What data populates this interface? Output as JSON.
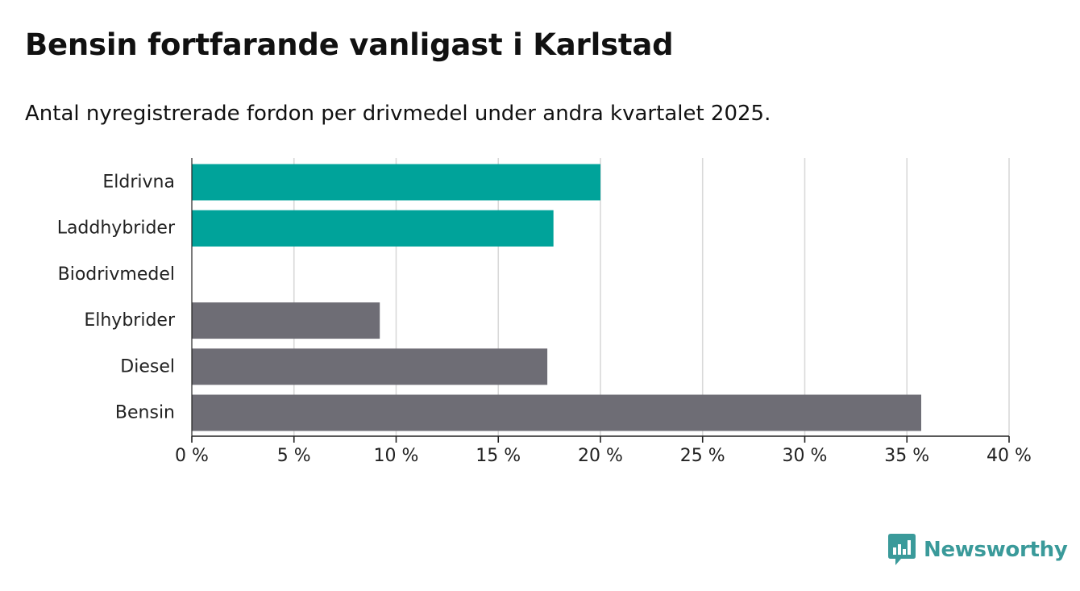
{
  "header": {
    "title": "Bensin fortfarande vanligast i Karlstad",
    "subtitle": "Antal nyregistrerade fordon per drivmedel under andra kvartalet 2025."
  },
  "brand": {
    "name": "Newsworthy",
    "color": "#3a9a9a",
    "icon": "newsworthy-logo-icon"
  },
  "chart_data": {
    "type": "bar",
    "orientation": "horizontal",
    "categories": [
      "Eldrivna",
      "Laddhybrider",
      "Biodrivmedel",
      "Elhybrider",
      "Diesel",
      "Bensin"
    ],
    "values": [
      20.0,
      17.7,
      0.0,
      9.2,
      17.4,
      35.7
    ],
    "bar_colors": [
      "#00a39a",
      "#00a39a",
      "#00a39a",
      "#6e6d75",
      "#6e6d75",
      "#6e6d75"
    ],
    "xlim": [
      0,
      40
    ],
    "x_ticks": [
      0,
      5,
      10,
      15,
      20,
      25,
      30,
      35,
      40
    ],
    "tick_labels": [
      "0 %",
      "5 %",
      "10 %",
      "15 %",
      "20 %",
      "25 %",
      "30 %",
      "35 %",
      "40 %"
    ],
    "grid": true,
    "legend": "none"
  }
}
